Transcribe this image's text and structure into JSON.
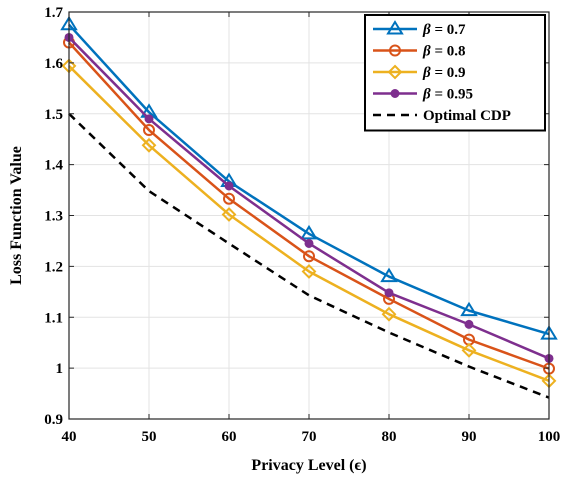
{
  "chart_data": {
    "type": "line",
    "title": "",
    "xlabel": "Privacy Level (ϵ)",
    "ylabel": "Loss Function Value",
    "x": [
      40,
      50,
      60,
      70,
      80,
      90,
      100
    ],
    "xlim": [
      40,
      100
    ],
    "ylim": [
      0.9,
      1.7
    ],
    "xticks": [
      "40",
      "50",
      "60",
      "70",
      "80",
      "90",
      "100"
    ],
    "yticks": [
      "0.9",
      "1",
      "1.1",
      "1.2",
      "1.3",
      "1.4",
      "1.5",
      "1.6",
      "1.7"
    ],
    "grid": true,
    "legend_position": "top-right",
    "series": [
      {
        "name": "β = 0.7",
        "beta": "0.7",
        "color": "#0072BD",
        "marker": "triangle",
        "dash": "solid",
        "values": [
          1.675,
          1.503,
          1.367,
          1.264,
          1.18,
          1.113,
          1.067
        ]
      },
      {
        "name": "β = 0.8",
        "beta": "0.8",
        "color": "#D95319",
        "marker": "circle-open",
        "dash": "solid",
        "values": [
          1.64,
          1.468,
          1.333,
          1.22,
          1.136,
          1.056,
          0.999
        ]
      },
      {
        "name": "β = 0.9",
        "beta": "0.9",
        "color": "#EDB120",
        "marker": "diamond",
        "dash": "solid",
        "values": [
          1.594,
          1.438,
          1.302,
          1.19,
          1.106,
          1.035,
          0.975
        ]
      },
      {
        "name": "β = 0.95",
        "beta": "0.95",
        "color": "#7E2F8E",
        "marker": "circle-filled",
        "dash": "solid",
        "values": [
          1.65,
          1.49,
          1.358,
          1.245,
          1.148,
          1.086,
          1.019
        ]
      },
      {
        "name": "Optimal CDP",
        "color": "#000000",
        "marker": "none",
        "dash": "dashed",
        "values": [
          1.5,
          1.348,
          1.245,
          1.143,
          1.07,
          1.003,
          0.942
        ]
      }
    ]
  }
}
